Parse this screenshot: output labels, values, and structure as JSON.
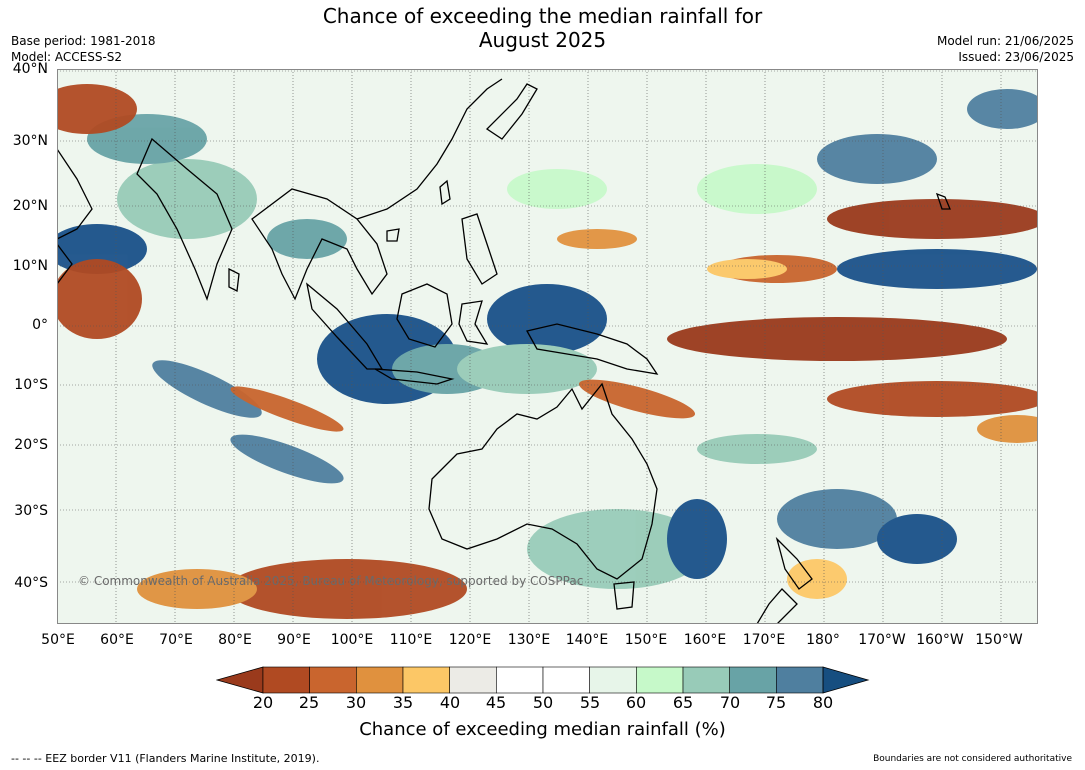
{
  "title_line1": "Chance of exceeding the median rainfall for",
  "title_line2": "August 2025",
  "base_period": "Base period: 1981-2018",
  "model": "Model: ACCESS-S2",
  "model_run": "Model run: 21/06/2025",
  "issued": "Issued: 23/06/2025",
  "lat_labels": [
    "40°N",
    "30°N",
    "20°N",
    "10°N",
    "0°",
    "10°S",
    "20°S",
    "30°S",
    "40°S"
  ],
  "lon_labels": [
    "50°E",
    "60°E",
    "70°E",
    "80°E",
    "90°E",
    "100°E",
    "110°E",
    "120°E",
    "130°E",
    "140°E",
    "150°E",
    "160°E",
    "170°E",
    "180°",
    "170°W",
    "160°W",
    "150°W"
  ],
  "colorbar": {
    "labels": [
      "20",
      "25",
      "30",
      "35",
      "40",
      "45",
      "50",
      "55",
      "60",
      "65",
      "70",
      "75",
      "80"
    ],
    "title": "Chance of exceeding median rainfall (%)",
    "colors": [
      "#9a3a1c",
      "#b04a22",
      "#c9652e",
      "#e0913e",
      "#fcc766",
      "#ecebe6",
      "#ffffff",
      "#ffffff",
      "#e7f5e9",
      "#c6f9c9",
      "#98cbb8",
      "#68a3a6",
      "#4f7f9f",
      "#164e80"
    ]
  },
  "copyright": "© Commonwealth of Australia 2025, Bureau of Meteorology, supported by COSPPac",
  "eez_note": "--  --  -- EEZ border V11 (Flanders Marine Institute, 2019).",
  "boundary_note": "Boundaries are not considered authoritative"
}
